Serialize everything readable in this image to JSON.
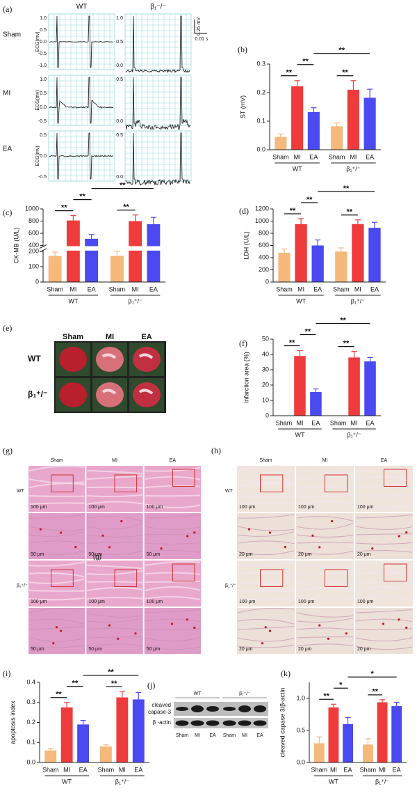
{
  "chart_data": [
    {
      "type": "bar",
      "label": "(b)",
      "ylabel": "ST (mV)",
      "categories": [
        "Sham",
        "MI",
        "EA",
        "Sham",
        "MI",
        "EA"
      ],
      "groups": [
        "WT",
        "β₁⁺/⁻"
      ],
      "values": [
        0.045,
        0.222,
        0.132,
        0.082,
        0.21,
        0.182
      ],
      "errors": [
        0.01,
        0.02,
        0.015,
        0.012,
        0.032,
        0.03
      ],
      "colors": [
        "#f5b97c",
        "#ee3b3b",
        "#4a4af0",
        "#f5b97c",
        "#ee3b3b",
        "#4a4af0"
      ],
      "ylim": [
        0,
        0.3
      ],
      "yticks": [
        {
          "value": 0,
          "label": "0.0"
        },
        0.1,
        0.2,
        0.3
      ],
      "comparisons": [
        {
          "label": "**",
          "bars": [
            0,
            1
          ]
        },
        {
          "label": "**",
          "bars": [
            1,
            2
          ]
        },
        {
          "label": "**",
          "bars": [
            3,
            4
          ]
        },
        {
          "label": "**",
          "bars": [
            2,
            5
          ]
        }
      ]
    },
    {
      "type": "bar",
      "label": "(c)",
      "ylabel": "CK-MB (U/L)",
      "categories": [
        "Sham",
        "MI",
        "EA",
        "Sham",
        "MI",
        "EA"
      ],
      "groups": [
        "WT",
        "β₁⁺/⁻"
      ],
      "values": [
        170,
        810,
        510,
        170,
        800,
        750
      ],
      "errors": [
        25,
        80,
        70,
        30,
        100,
        110
      ],
      "colors": [
        "#f5b97c",
        "#ee3b3b",
        "#4a4af0",
        "#f5b97c",
        "#ee3b3b",
        "#4a4af0"
      ],
      "ylim": [
        0,
        1000
      ],
      "ybreak": [
        200,
        400
      ],
      "yticks": [
        0,
        100,
        200,
        400,
        600,
        800,
        1000
      ],
      "comparisons": [
        {
          "label": "**",
          "bars": [
            0,
            1
          ]
        },
        {
          "label": "**",
          "bars": [
            1,
            2
          ]
        },
        {
          "label": "**",
          "bars": [
            3,
            4
          ]
        },
        {
          "label": "**",
          "bars": [
            2,
            5
          ]
        }
      ]
    },
    {
      "type": "bar",
      "label": "(d)",
      "ylabel": "LDH (U/L)",
      "categories": [
        "Sham",
        "MI",
        "EA",
        "Sham",
        "MI",
        "EA"
      ],
      "groups": [
        "WT",
        "β₁⁺/⁻"
      ],
      "values": [
        480,
        950,
        600,
        500,
        950,
        890
      ],
      "errors": [
        60,
        90,
        90,
        60,
        70,
        90
      ],
      "colors": [
        "#f5b97c",
        "#ee3b3b",
        "#4a4af0",
        "#f5b97c",
        "#ee3b3b",
        "#4a4af0"
      ],
      "ylim": [
        0,
        1200
      ],
      "yticks": [
        0,
        200,
        400,
        600,
        800,
        1000,
        1200
      ],
      "comparisons": [
        {
          "label": "**",
          "bars": [
            0,
            1
          ]
        },
        {
          "label": "**",
          "bars": [
            1,
            2
          ]
        },
        {
          "label": "**",
          "bars": [
            3,
            4
          ]
        },
        {
          "label": "**",
          "bars": [
            2,
            5
          ]
        }
      ]
    },
    {
      "type": "bar",
      "label": "(f)",
      "ylabel": "infarction area (%)",
      "categories": [
        "Sham",
        "MI",
        "EA",
        "Sham",
        "MI",
        "EA"
      ],
      "groups": [
        "WT",
        "β₁⁺/⁻"
      ],
      "values": [
        0,
        39,
        15.5,
        0,
        38,
        35.5
      ],
      "errors": [
        0,
        3.5,
        2,
        0,
        4,
        2.5
      ],
      "colors": [
        "#f5b97c",
        "#ee3b3b",
        "#4a4af0",
        "#f5b97c",
        "#ee3b3b",
        "#4a4af0"
      ],
      "ylim": [
        0,
        50
      ],
      "yticks": [
        0,
        10,
        20,
        30,
        40,
        50
      ],
      "comparisons": [
        {
          "label": "**",
          "bars": [
            0,
            1
          ]
        },
        {
          "label": "**",
          "bars": [
            1,
            2
          ]
        },
        {
          "label": "**",
          "bars": [
            3,
            4
          ]
        },
        {
          "label": "**",
          "bars": [
            2,
            5
          ]
        }
      ]
    },
    {
      "type": "bar",
      "label": "(i)",
      "ylabel": "apoptosis index",
      "categories": [
        "Sham",
        "MI",
        "EA",
        "Sham",
        "MI",
        "EA"
      ],
      "groups": [
        "WT",
        "β₁⁺/⁻"
      ],
      "values": [
        0.06,
        0.275,
        0.19,
        0.08,
        0.325,
        0.315
      ],
      "errors": [
        0.01,
        0.025,
        0.02,
        0.008,
        0.03,
        0.035
      ],
      "colors": [
        "#f5b97c",
        "#ee3b3b",
        "#4a4af0",
        "#f5b97c",
        "#ee3b3b",
        "#4a4af0"
      ],
      "ylim": [
        0,
        0.4
      ],
      "yticks": [
        {
          "value": 0,
          "label": "0.0"
        },
        0.1,
        0.2,
        0.3,
        0.4
      ],
      "comparisons": [
        {
          "label": "**",
          "bars": [
            0,
            1
          ]
        },
        {
          "label": "**",
          "bars": [
            1,
            2
          ]
        },
        {
          "label": "**",
          "bars": [
            3,
            4
          ]
        },
        {
          "label": "**",
          "bars": [
            2,
            5
          ]
        }
      ]
    },
    {
      "type": "bar",
      "label": "(k)",
      "ylabel": "cleaved capase 3/β-actin",
      "categories": [
        "Sham",
        "MI",
        "EA",
        "Sham",
        "MI",
        "EA"
      ],
      "groups": [
        "WT",
        "β₁⁺/⁻"
      ],
      "values": [
        0.3,
        0.86,
        0.6,
        0.28,
        0.94,
        0.88
      ],
      "errors": [
        0.1,
        0.05,
        0.1,
        0.09,
        0.04,
        0.06
      ],
      "colors": [
        "#f5b97c",
        "#ee3b3b",
        "#4a4af0",
        "#f5b97c",
        "#ee3b3b",
        "#4a4af0"
      ],
      "ylim": [
        0,
        1.25
      ],
      "yticks": [
        {
          "value": 0,
          "label": "0.0"
        },
        0.5,
        {
          "value": 1,
          "label": "1.0"
        }
      ],
      "comparisons": [
        {
          "label": "**",
          "bars": [
            0,
            1
          ]
        },
        {
          "label": "*",
          "bars": [
            1,
            2
          ]
        },
        {
          "label": "**",
          "bars": [
            3,
            4
          ]
        },
        {
          "label": "*",
          "bars": [
            2,
            5
          ]
        }
      ]
    }
  ],
  "ecg": {
    "label": "(a)",
    "columns": [
      "WT",
      "β₁⁻/⁻"
    ],
    "rows": [
      "Sham",
      "MI",
      "EA"
    ],
    "ylabel": "ECG(mv)",
    "wt_ticks": [
      [
        "1.0",
        "0.5",
        "0.0",
        "-0.5",
        "-1.0"
      ],
      [
        "1.0",
        "0.5",
        "0.0",
        "-0.5"
      ],
      [
        "0.5",
        "0.0",
        "-0.5"
      ]
    ],
    "ko_ticks": [
      [
        "1.0",
        "0.5",
        "0.0"
      ],
      [
        "0.5",
        "0.0"
      ],
      [
        "0.5",
        "0.0"
      ]
    ],
    "scale_v": "0.25 mV",
    "scale_t": "0.01 s"
  },
  "hearts": {
    "label": "(e)",
    "columns": [
      "Sham",
      "MI",
      "EA"
    ],
    "rows": [
      "WT",
      "β₁⁺/⁻"
    ]
  },
  "he_stain": {
    "label": "(g)",
    "columns": [
      "Sham",
      "MI",
      "EA"
    ],
    "rows": [
      "WT",
      "β₁⁺/⁻"
    ],
    "scale_low": "100 μm",
    "scale_high": "50 μm",
    "overlay": "(g)"
  },
  "tunel": {
    "label": "(h)",
    "columns": [
      "Sham",
      "MI",
      "EA"
    ],
    "rows": [
      "WT",
      "β₁⁺/⁻"
    ],
    "scale_low": "100 μm",
    "scale_high": "20 μm"
  },
  "blot": {
    "label": "(j)",
    "groups": [
      "WT",
      "β₁⁺/⁻"
    ],
    "band_1": [
      "cleaved",
      "capase-3"
    ],
    "band_2": "β -actin",
    "lanes": [
      "Sham",
      "MI",
      "EA",
      "Sham",
      "MI",
      "EA"
    ]
  }
}
